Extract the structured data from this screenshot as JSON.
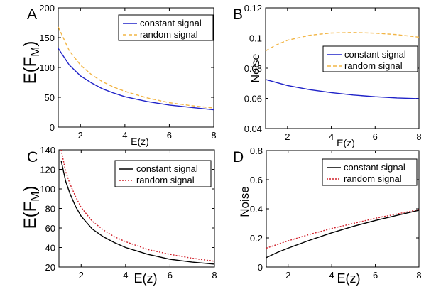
{
  "chart_data": [
    {
      "panel_label": "A",
      "type": "line",
      "xlabel": "E(z)",
      "ylabel_main": "E(F",
      "ylabel_sub": "M",
      "ylabel_close": ")",
      "xlim": [
        1,
        8
      ],
      "ylim": [
        0,
        200
      ],
      "xticks": [
        2,
        4,
        6,
        8
      ],
      "yticks": [
        0,
        50,
        100,
        150,
        200
      ],
      "ytick_labels": [
        "0",
        "50",
        "100",
        "150",
        "200"
      ],
      "legend_position": "top-right",
      "series": [
        {
          "name": "constant signal",
          "color": "#1f22c8",
          "dash": "solid",
          "x": [
            1.0,
            1.5,
            2.0,
            2.5,
            3.0,
            3.5,
            4.0,
            5.0,
            6.0,
            7.0,
            8.0
          ],
          "y": [
            132,
            104,
            86,
            74,
            64,
            57,
            51,
            43,
            37,
            33,
            29
          ]
        },
        {
          "name": "random signal",
          "color": "#f2b545",
          "dash": "dashed",
          "x": [
            1.0,
            1.5,
            2.0,
            2.5,
            3.0,
            3.5,
            4.0,
            5.0,
            6.0,
            7.0,
            8.0
          ],
          "y": [
            168,
            128,
            104,
            88,
            76,
            67,
            60,
            49,
            41,
            36,
            32
          ]
        }
      ]
    },
    {
      "panel_label": "B",
      "type": "line",
      "xlabel": "E(z)",
      "ylabel": "Noise",
      "xlim": [
        1,
        8
      ],
      "ylim": [
        0.04,
        0.12
      ],
      "xticks": [
        2,
        4,
        6,
        8
      ],
      "yticks": [
        0.04,
        0.06,
        0.08,
        0.1,
        0.12
      ],
      "ytick_labels": [
        "0.04",
        "0.06",
        "0.08",
        "0.1",
        "0.12"
      ],
      "legend_position": "middle-right",
      "series": [
        {
          "name": "constant signal",
          "color": "#1f22c8",
          "dash": "solid",
          "x": [
            1.0,
            1.5,
            2.0,
            3.0,
            4.0,
            5.0,
            6.0,
            7.0,
            8.0
          ],
          "y": [
            0.0725,
            0.0705,
            0.0685,
            0.0658,
            0.0638,
            0.0622,
            0.0611,
            0.0603,
            0.0598
          ]
        },
        {
          "name": "random signal",
          "color": "#f2b545",
          "dash": "dashed",
          "x": [
            1.0,
            1.5,
            2.0,
            3.0,
            4.0,
            5.0,
            6.0,
            7.0,
            8.0
          ],
          "y": [
            0.0915,
            0.0955,
            0.0985,
            0.1018,
            0.1033,
            0.1036,
            0.1032,
            0.1022,
            0.1005
          ]
        }
      ]
    },
    {
      "panel_label": "C",
      "type": "line",
      "xlabel": "E(z)",
      "ylabel_main": "E(F",
      "ylabel_sub": "M",
      "ylabel_close": ")",
      "xlim": [
        1,
        8
      ],
      "ylim": [
        20,
        140
      ],
      "xticks": [
        2,
        4,
        6,
        8
      ],
      "yticks": [
        20,
        40,
        60,
        80,
        100,
        120,
        140
      ],
      "ytick_labels": [
        "20",
        "40",
        "60",
        "80",
        "100",
        "120",
        "140"
      ],
      "legend_position": "top-right",
      "series": [
        {
          "name": "constant signal",
          "color": "#000000",
          "dash": "solid",
          "x": [
            1.1,
            1.3,
            1.5,
            1.75,
            2.0,
            2.5,
            3.0,
            3.5,
            4.0,
            5.0,
            6.0,
            7.0,
            8.0
          ],
          "y": [
            129,
            108,
            95,
            82,
            72,
            59,
            51,
            45,
            40,
            33,
            28,
            25,
            23
          ]
        },
        {
          "name": "random signal",
          "color": "#d0202a",
          "dash": "dotted",
          "x": [
            1.1,
            1.3,
            1.5,
            1.75,
            2.0,
            2.5,
            3.0,
            3.5,
            4.0,
            5.0,
            6.0,
            7.0,
            8.0
          ],
          "y": [
            140,
            118,
            105,
            92,
            81,
            67,
            58,
            51,
            46,
            38,
            33,
            29,
            26
          ]
        }
      ]
    },
    {
      "panel_label": "D",
      "type": "line",
      "xlabel": "E(z)",
      "ylabel": "Noise",
      "xlim": [
        1,
        8
      ],
      "ylim": [
        0,
        0.8
      ],
      "xticks": [
        2,
        4,
        6,
        8
      ],
      "yticks": [
        0,
        0.2,
        0.4,
        0.6,
        0.8
      ],
      "ytick_labels": [
        "0",
        "0.2",
        "0.4",
        "0.6",
        "0.8"
      ],
      "legend_position": "top-right",
      "series": [
        {
          "name": "constant signal",
          "color": "#000000",
          "dash": "solid",
          "x": [
            1.0,
            1.5,
            2.0,
            3.0,
            4.0,
            5.0,
            6.0,
            7.0,
            8.0
          ],
          "y": [
            0.065,
            0.1,
            0.13,
            0.185,
            0.235,
            0.28,
            0.32,
            0.355,
            0.39
          ]
        },
        {
          "name": "random signal",
          "color": "#d0202a",
          "dash": "dotted",
          "x": [
            1.0,
            1.5,
            2.0,
            3.0,
            4.0,
            5.0,
            6.0,
            7.0,
            8.0
          ],
          "y": [
            0.13,
            0.155,
            0.18,
            0.225,
            0.265,
            0.3,
            0.335,
            0.365,
            0.395
          ]
        }
      ]
    }
  ]
}
